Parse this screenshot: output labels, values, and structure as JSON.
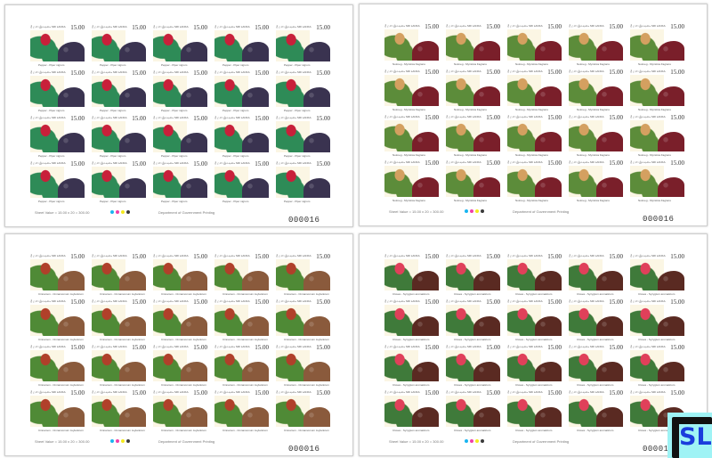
{
  "stamp_header": "ශ්‍රී ලංකා இலங்கை SRI LANKA",
  "stamp_value": "15.00",
  "sheet_value_text": "Sheet Value = 15.00 x 20 = 300.00",
  "printer_text": "Department of Government Printing",
  "color_dots": [
    "#19b5f0",
    "#f03fa8",
    "#f5ea1e",
    "#3a3a3a"
  ],
  "sheets": [
    {
      "name": "pepper",
      "caption": "Pepper - Piper nigrum",
      "serial": "000016",
      "plant_color": "#2e8b57",
      "accent_color": "#c8203a",
      "heap_color": "#3a3350"
    },
    {
      "name": "nutmeg",
      "caption": "Nutmeg - Myristica fragrans",
      "serial": "000016",
      "plant_color": "#5c8c3a",
      "accent_color": "#d4a060",
      "heap_color": "#7a1f2a"
    },
    {
      "name": "cinnamon",
      "caption": "Cinnamon - Cinnamomum zeylanicum",
      "serial": "000016",
      "plant_color": "#4f8a36",
      "accent_color": "#b0402a",
      "heap_color": "#8a5a3c"
    },
    {
      "name": "cloves",
      "caption": "Cloves - Syzygium aromaticum",
      "serial": "00001",
      "plant_color": "#3f7a3a",
      "accent_color": "#e0405a",
      "heap_color": "#5a2a22"
    }
  ],
  "logo": {
    "text": "SL",
    "bg": "#9ff3f5",
    "text_color": "#1a3cdc"
  }
}
